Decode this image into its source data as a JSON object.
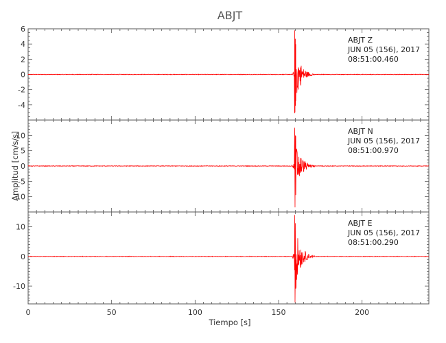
{
  "chart_data": {
    "type": "line",
    "title": "ABJT",
    "xlabel": "Tiempo [s]",
    "ylabel": "Amplitud [cm/s/s]",
    "xlim": [
      0,
      240
    ],
    "x_ticks": [
      0,
      50,
      100,
      150,
      200
    ],
    "grid": false,
    "line_color": "#ff0000",
    "panels": [
      {
        "channel": "ABJT   Z",
        "date": "JUN 05 (156), 2017",
        "time": "08:51:00.460",
        "ylim": [
          -6,
          6
        ],
        "y_ticks": [
          -4,
          -2,
          0,
          2,
          4,
          6
        ],
        "event_onset": 159.5,
        "peak_positive": 5.8,
        "peak_negative": -5.0
      },
      {
        "channel": "ABJT   N",
        "date": "JUN 05 (156), 2017",
        "time": "08:51:00.970",
        "ylim": [
          -15,
          15
        ],
        "y_ticks": [
          -10,
          -5,
          0,
          5,
          10
        ],
        "event_onset": 159.5,
        "peak_positive": 12.5,
        "peak_negative": -13.5
      },
      {
        "channel": "ABJT   E",
        "date": "JUN 05 (156), 2017",
        "time": "08:51:00.290",
        "ylim": [
          -16,
          15
        ],
        "y_ticks": [
          -10,
          0,
          10
        ],
        "event_onset": 159.5,
        "peak_positive": 14.0,
        "peak_negative": -15.5
      }
    ]
  }
}
